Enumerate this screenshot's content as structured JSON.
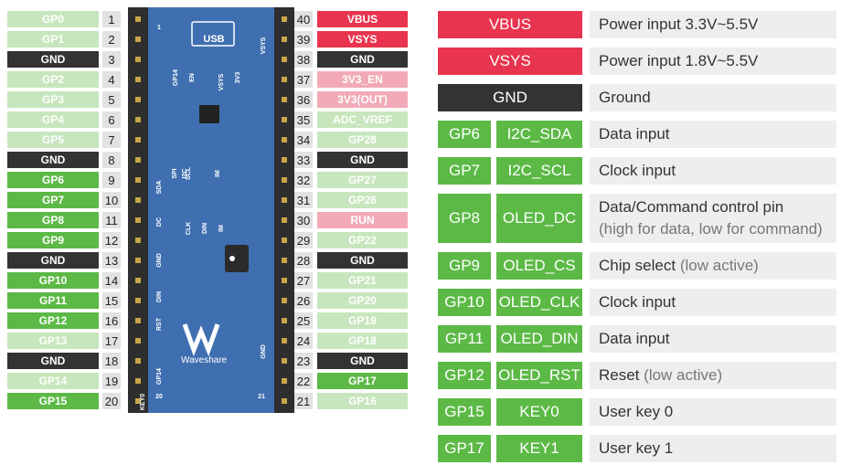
{
  "left_pins": [
    {
      "label": "GP0",
      "number": 1,
      "color": "#c8e6bd"
    },
    {
      "label": "GP1",
      "number": 2,
      "color": "#c8e6bd"
    },
    {
      "label": "GND",
      "number": 3,
      "color": "#333333"
    },
    {
      "label": "GP2",
      "number": 4,
      "color": "#c8e6bd"
    },
    {
      "label": "GP3",
      "number": 5,
      "color": "#c8e6bd"
    },
    {
      "label": "GP4",
      "number": 6,
      "color": "#c8e6bd"
    },
    {
      "label": "GP5",
      "number": 7,
      "color": "#c8e6bd"
    },
    {
      "label": "GND",
      "number": 8,
      "color": "#333333"
    },
    {
      "label": "GP6",
      "number": 9,
      "color": "#5cb946"
    },
    {
      "label": "GP7",
      "number": 10,
      "color": "#5cb946"
    },
    {
      "label": "GP8",
      "number": 11,
      "color": "#5cb946"
    },
    {
      "label": "GP9",
      "number": 12,
      "color": "#5cb946"
    },
    {
      "label": "GND",
      "number": 13,
      "color": "#333333"
    },
    {
      "label": "GP10",
      "number": 14,
      "color": "#5cb946"
    },
    {
      "label": "GP11",
      "number": 15,
      "color": "#5cb946"
    },
    {
      "label": "GP12",
      "number": 16,
      "color": "#5cb946"
    },
    {
      "label": "GP13",
      "number": 17,
      "color": "#c8e6bd"
    },
    {
      "label": "GND",
      "number": 18,
      "color": "#333333"
    },
    {
      "label": "GP14",
      "number": 19,
      "color": "#c8e6bd"
    },
    {
      "label": "GP15",
      "number": 20,
      "color": "#5cb946"
    }
  ],
  "right_pins": [
    {
      "label": "VBUS",
      "number": 40,
      "color": "#e8344e"
    },
    {
      "label": "VSYS",
      "number": 39,
      "color": "#e8344e"
    },
    {
      "label": "GND",
      "number": 38,
      "color": "#333333"
    },
    {
      "label": "3V3_EN",
      "number": 37,
      "color": "#f2aab7"
    },
    {
      "label": "3V3(OUT)",
      "number": 36,
      "color": "#f2aab7"
    },
    {
      "label": "ADC_VREF",
      "number": 35,
      "color": "#c8e6bd"
    },
    {
      "label": "GP28",
      "number": 34,
      "color": "#c8e6bd"
    },
    {
      "label": "GND",
      "number": 33,
      "color": "#333333"
    },
    {
      "label": "GP27",
      "number": 32,
      "color": "#c8e6bd"
    },
    {
      "label": "GP26",
      "number": 31,
      "color": "#c8e6bd"
    },
    {
      "label": "RUN",
      "number": 30,
      "color": "#f2aab7"
    },
    {
      "label": "GP22",
      "number": 29,
      "color": "#c8e6bd"
    },
    {
      "label": "GND",
      "number": 28,
      "color": "#333333"
    },
    {
      "label": "GP21",
      "number": 27,
      "color": "#c8e6bd"
    },
    {
      "label": "GP20",
      "number": 26,
      "color": "#c8e6bd"
    },
    {
      "label": "GP19",
      "number": 25,
      "color": "#c8e6bd"
    },
    {
      "label": "GP18",
      "number": 24,
      "color": "#c8e6bd"
    },
    {
      "label": "GND",
      "number": 23,
      "color": "#333333"
    },
    {
      "label": "GP17",
      "number": 22,
      "color": "#5cb946"
    },
    {
      "label": "GP16",
      "number": 21,
      "color": "#c8e6bd"
    }
  ],
  "board": {
    "usb": "USB",
    "brand": "Waveshare",
    "labels": [
      "GP14",
      "EN",
      "VSYS",
      "3V3",
      "VSYS",
      "SDA",
      "SPI",
      "I2C",
      "SCL",
      "IM",
      "DC",
      "CLK",
      "DIN",
      "IM",
      "GND",
      "DIN",
      "RST",
      "GND",
      "GP14",
      "KEY0",
      "1",
      "20",
      "21"
    ]
  },
  "table": {
    "rows": [
      {
        "pins": [
          "VBUS"
        ],
        "color": "#e8344e",
        "description": "Power input 3.3V~5.5V"
      },
      {
        "pins": [
          "VSYS"
        ],
        "color": "#e8344e",
        "description": "Power input 1.8V~5.5V"
      },
      {
        "pins": [
          "GND"
        ],
        "color": "#333333",
        "description": "Ground"
      },
      {
        "pins": [
          "GP6",
          "I2C_SDA"
        ],
        "color": "#5cb946",
        "description": "Data input"
      },
      {
        "pins": [
          "GP7",
          "I2C_SCL"
        ],
        "color": "#5cb946",
        "description": "Clock input"
      },
      {
        "pins": [
          "GP8",
          "OLED_DC"
        ],
        "color": "#5cb946",
        "description": "Data/Command control pin",
        "note": "(high for data, low for command)"
      },
      {
        "pins": [
          "GP9",
          "OLED_CS"
        ],
        "color": "#5cb946",
        "description": "Chip select",
        "note": "(low active)"
      },
      {
        "pins": [
          "GP10",
          "OLED_CLK"
        ],
        "color": "#5cb946",
        "description": "Clock input"
      },
      {
        "pins": [
          "GP11",
          "OLED_DIN"
        ],
        "color": "#5cb946",
        "description": "Data input"
      },
      {
        "pins": [
          "GP12",
          "OLED_RST"
        ],
        "color": "#5cb946",
        "description": "Reset",
        "note": "(low active)"
      },
      {
        "pins": [
          "GP15",
          "KEY0"
        ],
        "color": "#5cb946",
        "description": "User key 0"
      },
      {
        "pins": [
          "GP17",
          "KEY1"
        ],
        "color": "#5cb946",
        "description": "User key 1"
      }
    ]
  }
}
